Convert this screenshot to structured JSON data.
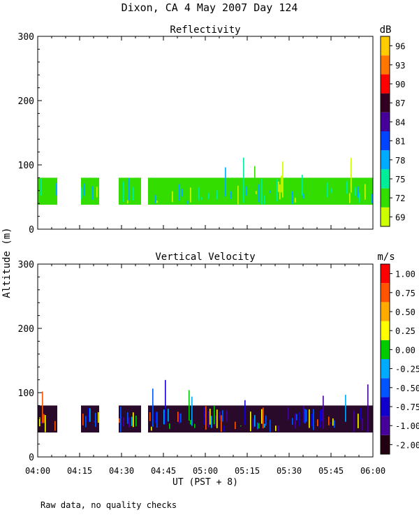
{
  "figure": {
    "title": "Dixon, CA  4 May 2007  Day 124",
    "ylabel": "Altitude (m)",
    "xlabel": "UT  (PST + 8)",
    "footnote": "Raw data, no quality checks"
  },
  "x_axis": {
    "range_min": [
      0,
      120
    ],
    "tick_values_min": [
      0,
      15,
      30,
      45,
      60,
      75,
      90,
      105,
      120
    ],
    "tick_labels": [
      "04:00",
      "04:15",
      "04:30",
      "04:45",
      "05:00",
      "05:15",
      "05:30",
      "05:45",
      "06:00"
    ],
    "minor_tick_step_min": 5
  },
  "chart_data": [
    {
      "type": "heatmap",
      "title": "Reflectivity",
      "units": "dB",
      "xlabel": "UT  (PST + 8)",
      "ylabel": "Altitude (m)",
      "ylim": [
        0,
        300
      ],
      "yticks": [
        0,
        100,
        200,
        300
      ],
      "colorbar": {
        "labels": [
          "69",
          "72",
          "75",
          "78",
          "81",
          "84",
          "87",
          "90",
          "93",
          "96"
        ],
        "colors": [
          "#ccff00",
          "#33dd00",
          "#00ee99",
          "#00aaff",
          "#0044ff",
          "#440099",
          "#330022",
          "#ff0000",
          "#ff7700",
          "#ffcc00"
        ]
      },
      "background_color": "#33dd00",
      "segments_min": [
        [
          0,
          7
        ],
        [
          15.5,
          22
        ],
        [
          29,
          37
        ],
        [
          39.5,
          120
        ]
      ],
      "base_altitude_m": 38,
      "top_altitude_m": 80,
      "spike_top_altitude_m": 120,
      "fill_colors": [
        "#33dd00",
        "#33dd00",
        "#33dd00",
        "#ccff00",
        "#00ee99",
        "#00aaff"
      ]
    },
    {
      "type": "heatmap",
      "title": "Vertical Velocity",
      "units": "m/s",
      "xlabel": "UT  (PST + 8)",
      "ylabel": "Altitude (m)",
      "ylim": [
        0,
        300
      ],
      "yticks": [
        0,
        100,
        200,
        300
      ],
      "colorbar": {
        "labels": [
          "-2.00",
          "-1.00",
          "-0.75",
          "-0.50",
          "-0.25",
          "0.00",
          "0.25",
          "0.50",
          "0.75",
          "1.00"
        ],
        "colors": [
          "#220011",
          "#440099",
          "#1100cc",
          "#0055ff",
          "#00aaff",
          "#00cc00",
          "#ffff00",
          "#ffaa00",
          "#ff5500",
          "#ff0000"
        ]
      },
      "background_color": "#2a0a2a",
      "segments_min": [
        [
          0,
          7
        ],
        [
          15.5,
          22
        ],
        [
          29,
          37
        ],
        [
          39.5,
          120
        ]
      ],
      "base_altitude_m": 38,
      "top_altitude_m": 80,
      "spike_top_altitude_m": 120,
      "fill_colors": [
        "#440099",
        "#1100cc",
        "#0055ff",
        "#00aaff",
        "#00cc00",
        "#ffff00",
        "#ff5500"
      ]
    }
  ]
}
